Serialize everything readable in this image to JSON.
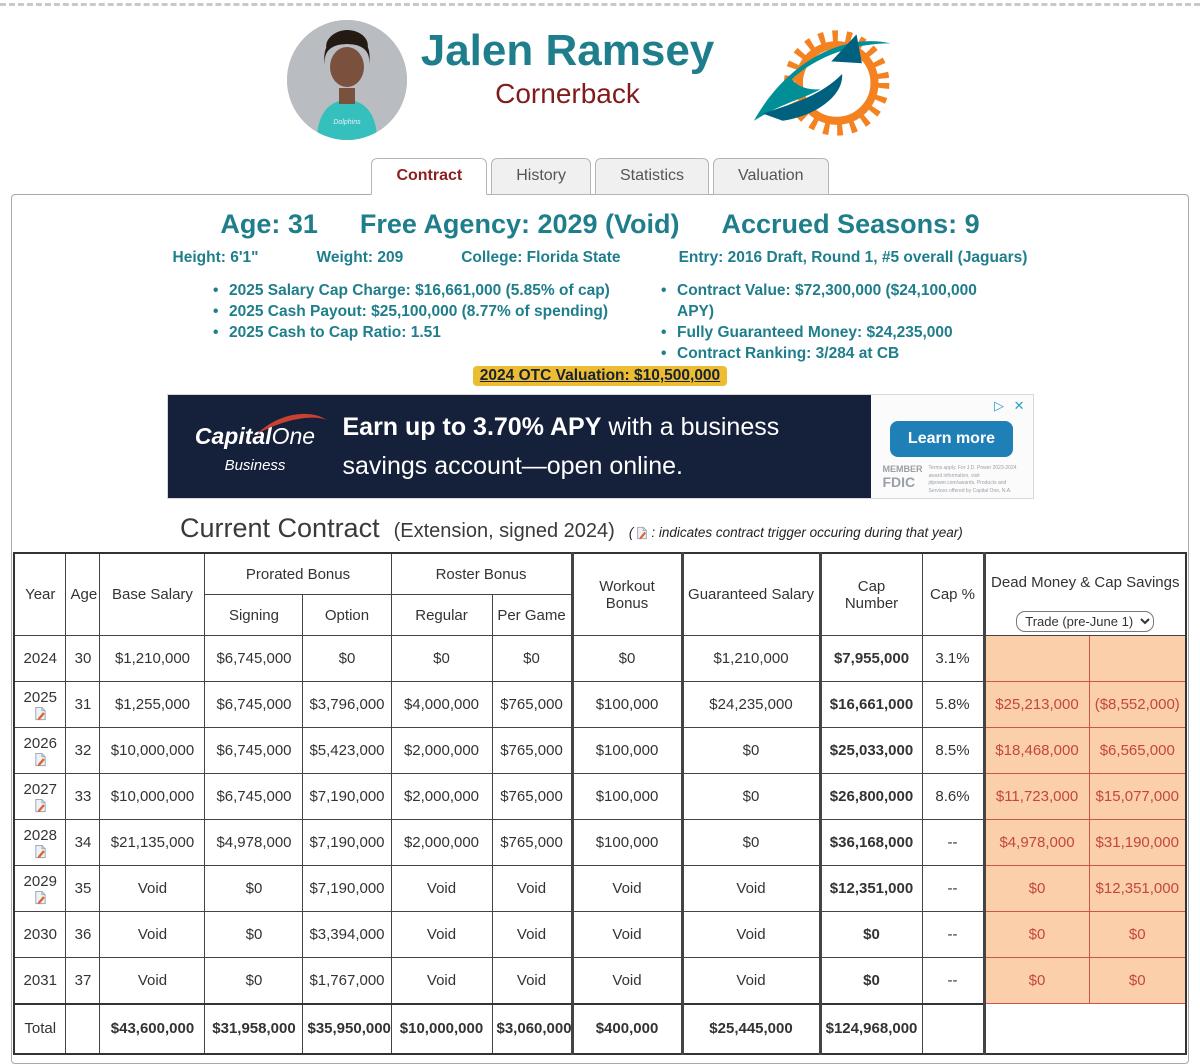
{
  "colors": {
    "accent_teal": "#1f7e8c",
    "accent_maroon": "#801c1c",
    "valuation_gold": "#ecbc33",
    "dead_bg": "#facfa9",
    "dead_text": "#c4473c",
    "ad_navy": "#15213b",
    "cta_blue": "#1f7fb7",
    "dolphins_aqua": "#008e97",
    "dolphins_orange": "#f58220"
  },
  "header": {
    "name": "Jalen Ramsey",
    "position": "Cornerback"
  },
  "tabs": [
    {
      "label": "Contract",
      "active": true
    },
    {
      "label": "History",
      "active": false
    },
    {
      "label": "Statistics",
      "active": false
    },
    {
      "label": "Valuation",
      "active": false
    }
  ],
  "summary": {
    "age": "Age: 31",
    "free_agency": "Free Agency: 2029 (Void)",
    "accrued_seasons": "Accrued Seasons: 9",
    "height": "Height: 6'1\"",
    "weight": "Weight: 209",
    "college": "College: Florida State",
    "entry": "Entry: 2016 Draft, Round 1, #5 overall (Jaguars)",
    "bullets_left": [
      "2025 Salary Cap Charge: $16,661,000 (5.85% of cap)",
      "2025 Cash Payout: $25,100,000 (8.77% of spending)",
      "2025 Cash to Cap Ratio: 1.51"
    ],
    "bullets_right": [
      "Contract Value: $72,300,000 ($24,100,000 APY)",
      "Fully Guaranteed Money: $24,235,000",
      "Contract Ranking: 3/284 at CB"
    ],
    "valuation": "2024 OTC Valuation: $10,500,000"
  },
  "ad": {
    "brand_main": "Capital",
    "brand_accent": "One",
    "brand_sub": "Business",
    "headline_bold": "Earn up to 3.70% APY",
    "headline_rest": " with a business savings account—open online.",
    "cta": "Learn more",
    "member_label": "MEMBER",
    "fdic_label": "FDIC",
    "fine_print": "Terms apply. For J.D. Power 2023-2024 award information, visit jdpower.com/awards. Products and Services offered by Capital One, N.A."
  },
  "contract_section": {
    "title": "Current Contract",
    "subtitle": "(Extension, signed 2024)",
    "note_open": "(",
    "note_text": ": indicates contract trigger occuring during that year)"
  },
  "table": {
    "headers": {
      "year": "Year",
      "age": "Age",
      "base_salary": "Base Salary",
      "prorated_bonus": "Prorated Bonus",
      "signing": "Signing",
      "option": "Option",
      "roster_bonus": "Roster Bonus",
      "regular": "Regular",
      "per_game": "Per Game",
      "workout_bonus": "Workout Bonus",
      "guaranteed_salary": "Guaranteed Salary",
      "cap_number": "Cap\nNumber",
      "cap_pct": "Cap %",
      "dead_money": "Dead Money & Cap Savings"
    },
    "dead_money_dropdown": {
      "selected": "Trade (pre-June 1)"
    },
    "rows": [
      {
        "year": "2024",
        "trigger": false,
        "age": "30",
        "base": "$1,210,000",
        "signing": "$6,745,000",
        "option": "$0",
        "regular": "$0",
        "per_game": "$0",
        "workout": "$0",
        "guaranteed": "$1,210,000",
        "cap_number": "$7,955,000",
        "cap_pct": "3.1%",
        "dead_money": "",
        "cap_savings": ""
      },
      {
        "year": "2025",
        "trigger": true,
        "age": "31",
        "base": "$1,255,000",
        "signing": "$6,745,000",
        "option": "$3,796,000",
        "regular": "$4,000,000",
        "per_game": "$765,000",
        "workout": "$100,000",
        "guaranteed": "$24,235,000",
        "cap_number": "$16,661,000",
        "cap_pct": "5.8%",
        "dead_money": "$25,213,000",
        "cap_savings": "($8,552,000)"
      },
      {
        "year": "2026",
        "trigger": true,
        "age": "32",
        "base": "$10,000,000",
        "signing": "$6,745,000",
        "option": "$5,423,000",
        "regular": "$2,000,000",
        "per_game": "$765,000",
        "workout": "$100,000",
        "guaranteed": "$0",
        "cap_number": "$25,033,000",
        "cap_pct": "8.5%",
        "dead_money": "$18,468,000",
        "cap_savings": "$6,565,000"
      },
      {
        "year": "2027",
        "trigger": true,
        "age": "33",
        "base": "$10,000,000",
        "signing": "$6,745,000",
        "option": "$7,190,000",
        "regular": "$2,000,000",
        "per_game": "$765,000",
        "workout": "$100,000",
        "guaranteed": "$0",
        "cap_number": "$26,800,000",
        "cap_pct": "8.6%",
        "dead_money": "$11,723,000",
        "cap_savings": "$15,077,000"
      },
      {
        "year": "2028",
        "trigger": true,
        "age": "34",
        "base": "$21,135,000",
        "signing": "$4,978,000",
        "option": "$7,190,000",
        "regular": "$2,000,000",
        "per_game": "$765,000",
        "workout": "$100,000",
        "guaranteed": "$0",
        "cap_number": "$36,168,000",
        "cap_pct": "--",
        "dead_money": "$4,978,000",
        "cap_savings": "$31,190,000"
      },
      {
        "year": "2029",
        "trigger": true,
        "age": "35",
        "base": "Void",
        "signing": "$0",
        "option": "$7,190,000",
        "regular": "Void",
        "per_game": "Void",
        "workout": "Void",
        "guaranteed": "Void",
        "cap_number": "$12,351,000",
        "cap_pct": "--",
        "dead_money": "$0",
        "cap_savings": "$12,351,000"
      },
      {
        "year": "2030",
        "trigger": false,
        "age": "36",
        "base": "Void",
        "signing": "$0",
        "option": "$3,394,000",
        "regular": "Void",
        "per_game": "Void",
        "workout": "Void",
        "guaranteed": "Void",
        "cap_number": "$0",
        "cap_pct": "--",
        "dead_money": "$0",
        "cap_savings": "$0"
      },
      {
        "year": "2031",
        "trigger": false,
        "age": "37",
        "base": "Void",
        "signing": "$0",
        "option": "$1,767,000",
        "regular": "Void",
        "per_game": "Void",
        "workout": "Void",
        "guaranteed": "Void",
        "cap_number": "$0",
        "cap_pct": "--",
        "dead_money": "$0",
        "cap_savings": "$0"
      }
    ],
    "total": {
      "label": "Total",
      "base": "$43,600,000",
      "signing": "$31,958,000",
      "option": "$35,950,000",
      "regular": "$10,000,000",
      "per_game": "$3,060,000",
      "workout": "$400,000",
      "guaranteed": "$25,445,000",
      "cap_number": "$124,968,000",
      "cap_pct": ""
    }
  }
}
